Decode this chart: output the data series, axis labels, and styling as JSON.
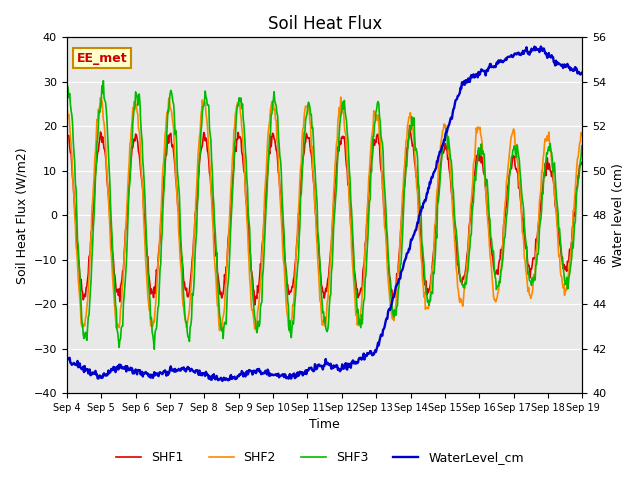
{
  "title": "Soil Heat Flux",
  "xlabel": "Time",
  "ylabel_left": "Soil Heat Flux (W/m2)",
  "ylabel_right": "Water level (cm)",
  "ylim_left": [
    -40,
    40
  ],
  "ylim_right": [
    40,
    56
  ],
  "yticks_left": [
    -40,
    -30,
    -20,
    -10,
    0,
    10,
    20,
    30,
    40
  ],
  "yticks_right": [
    40,
    42,
    44,
    46,
    48,
    50,
    52,
    54,
    56
  ],
  "xtick_labels": [
    "Sep 4",
    "Sep 5",
    "Sep 6",
    "Sep 7",
    "Sep 8",
    "Sep 9",
    "Sep 10",
    "Sep 11",
    "Sep 12",
    "Sep 13",
    "Sep 14",
    "Sep 15",
    "Sep 16",
    "Sep 17",
    "Sep 18",
    "Sep 19"
  ],
  "station_label": "EE_met",
  "station_label_color": "#cc0000",
  "station_box_facecolor": "#ffffcc",
  "station_box_edgecolor": "#cc8800",
  "shf1_color": "#dd0000",
  "shf2_color": "#ff8800",
  "shf3_color": "#00bb00",
  "water_color": "#0000cc",
  "bg_color": "#e8e8e8",
  "line_width": 1.2,
  "title_fontsize": 12,
  "legend_fontsize": 9,
  "tick_fontsize": 8
}
